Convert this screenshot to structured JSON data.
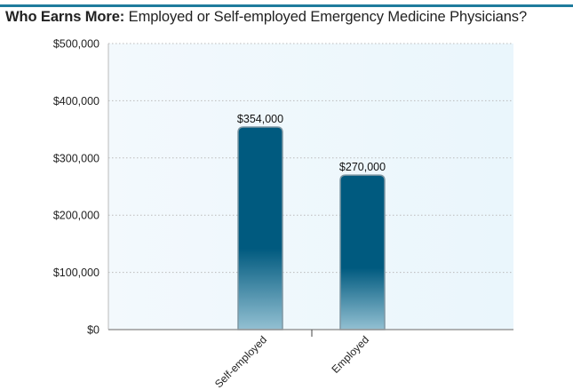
{
  "title_bold": "Who Earns More:",
  "title_rest": "Employed or Self-employed Emergency Medicine Physicians?",
  "colors": {
    "accent_line": "#1e7b9c",
    "bar_top": "#005a7f",
    "bar_bottom": "#8dbccf",
    "plot_bg": "#eef7fc"
  },
  "chart_data": {
    "type": "bar",
    "title": "Who Earns More: Employed or Self-employed Emergency Medicine Physicians?",
    "categories": [
      "Self-employed",
      "Employed"
    ],
    "values": [
      354000,
      270000
    ],
    "data_labels": [
      "$354,000",
      "$270,000"
    ],
    "ylim": [
      0,
      500000
    ],
    "yticks": [
      0,
      100000,
      200000,
      300000,
      400000,
      500000
    ],
    "ytick_labels": [
      "$0",
      "$100,000",
      "$200,000",
      "$300,000",
      "$400,000",
      "$500,000"
    ],
    "grid": true,
    "xlabel": "",
    "ylabel": ""
  }
}
